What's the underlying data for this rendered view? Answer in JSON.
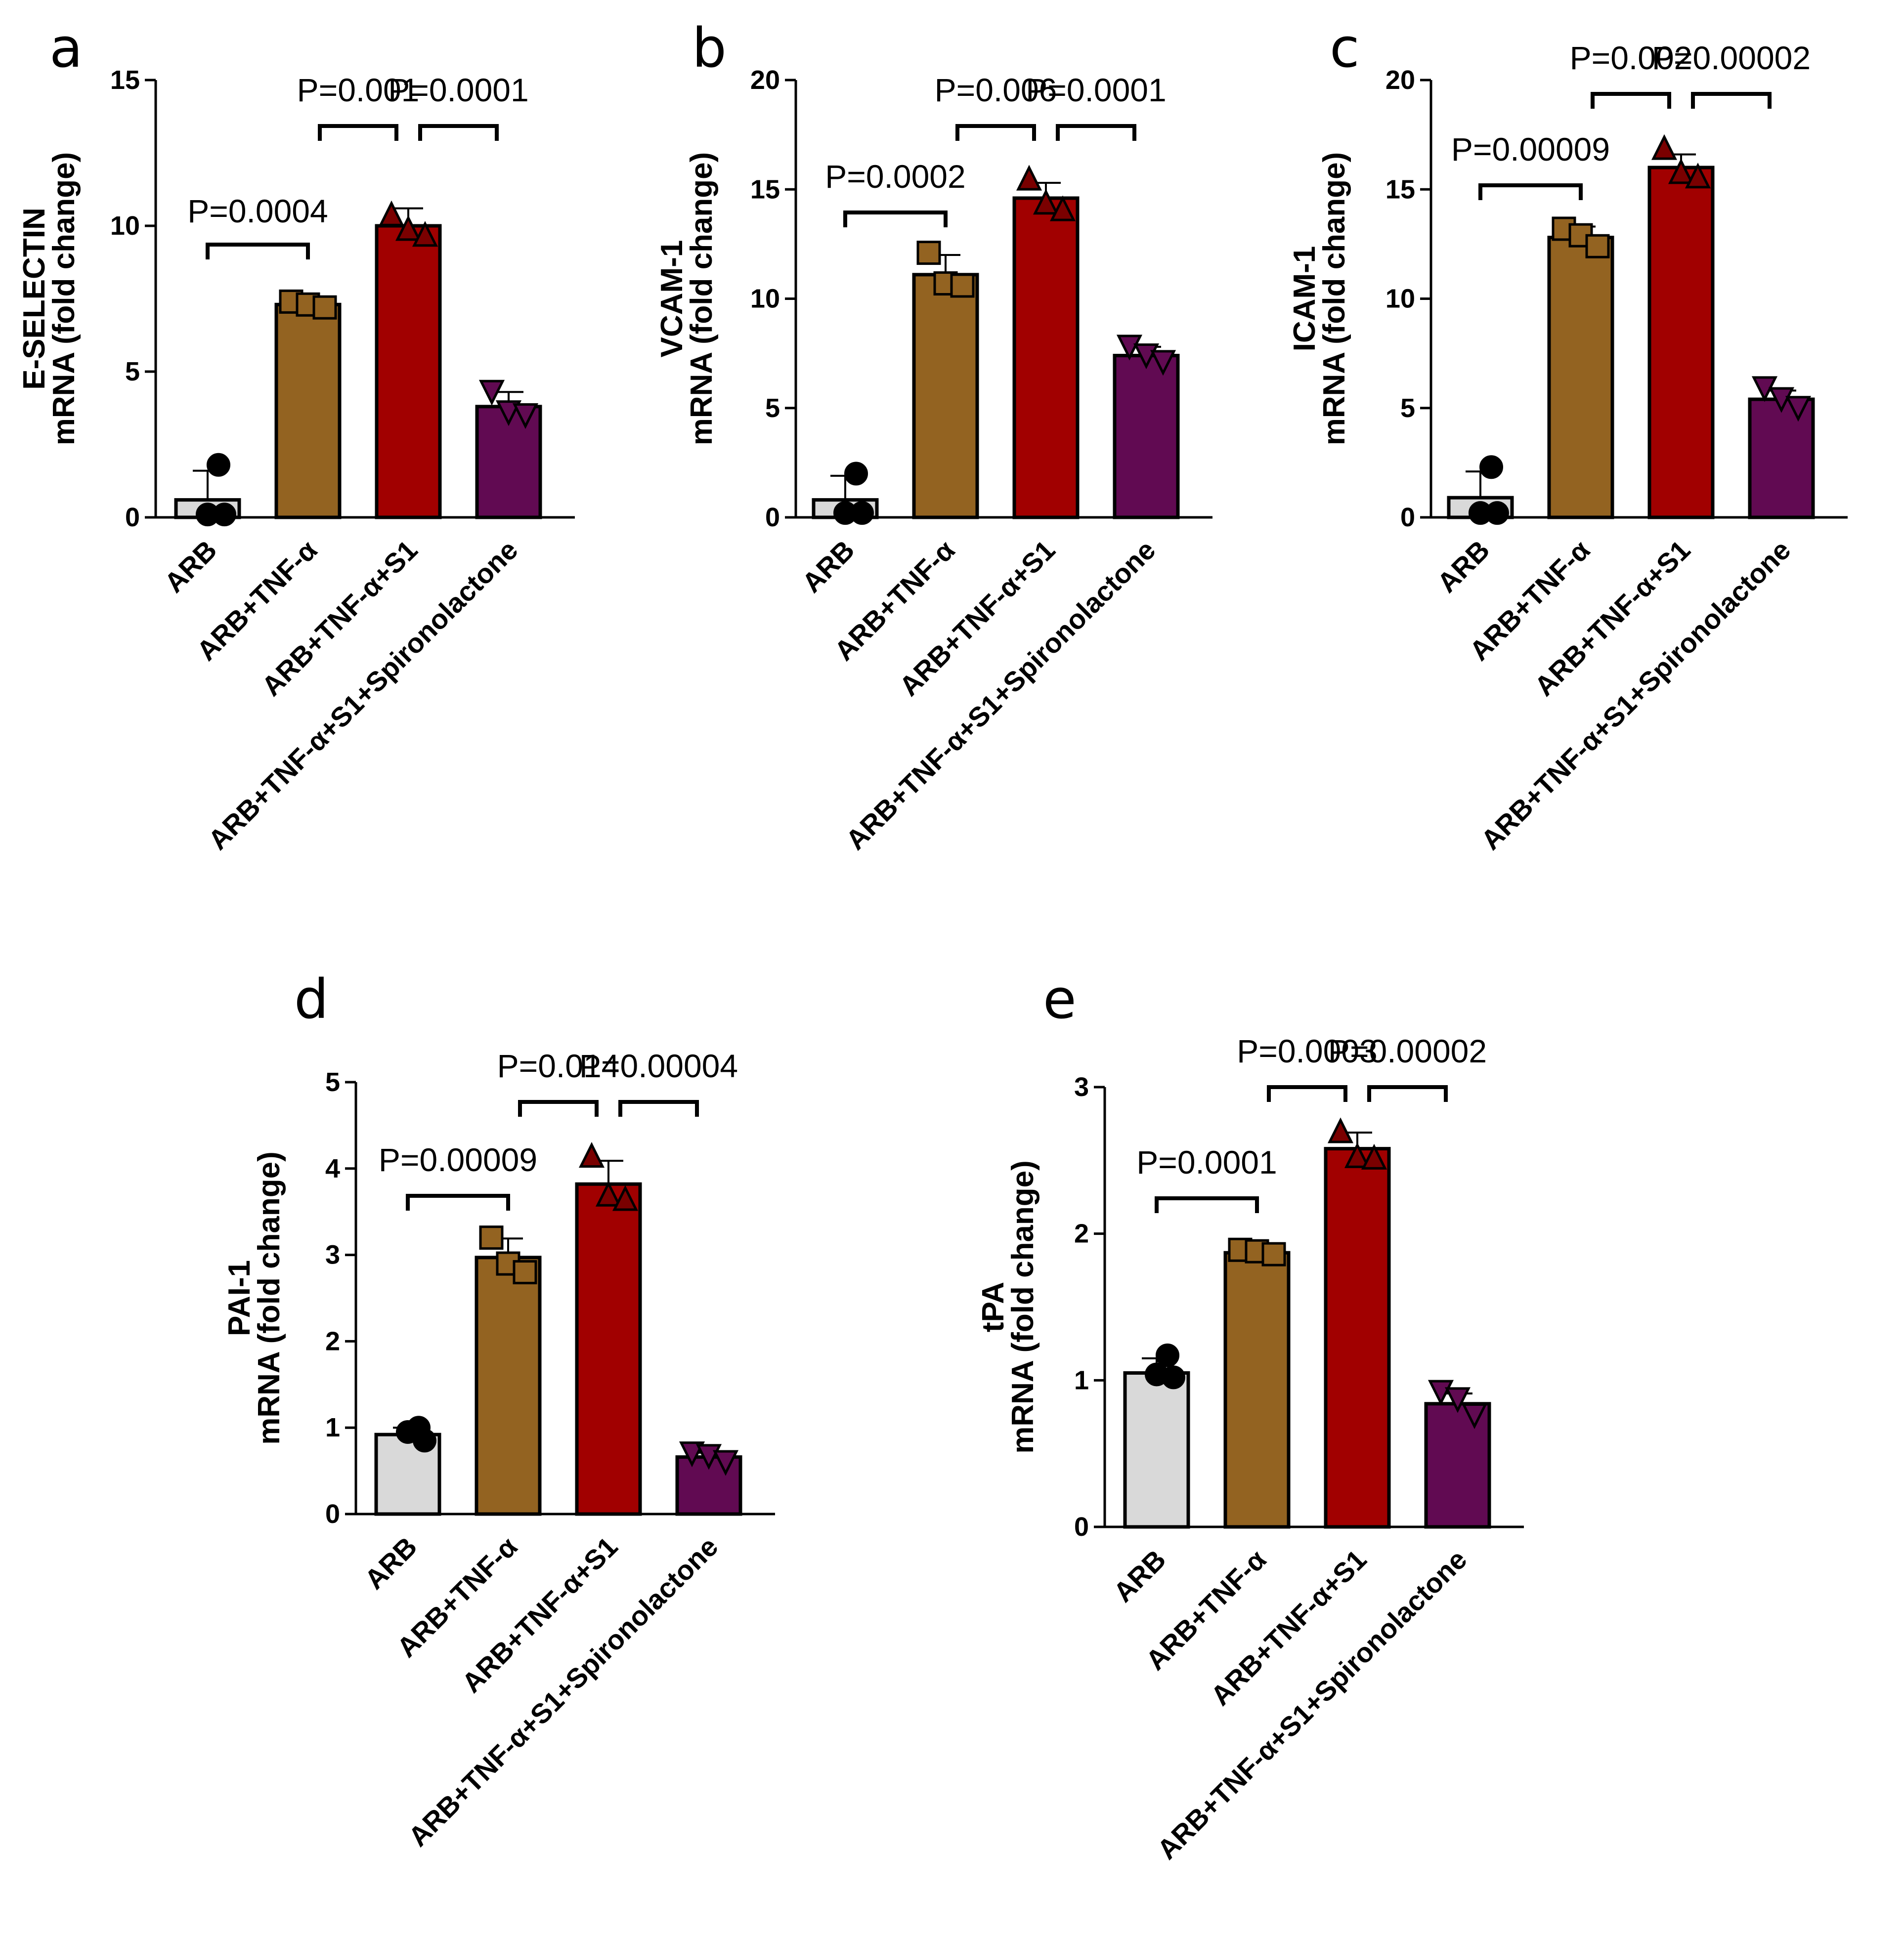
{
  "colors": {
    "ARB": "#d9d9d9",
    "ARB_TNF": "#936321",
    "ARB_TNF_S1": "#a10000",
    "ARB_TNF_S1_Spiro": "#610a52",
    "ARB_dots": "#000000",
    "TNF_dots": "#936321",
    "S1_dots": "#7a0000",
    "Spiro_dots": "#610a52"
  },
  "chart_data": [
    {
      "panel": "a",
      "type": "bar",
      "categories": [
        "ARB",
        "ARB+TNF-α",
        "ARB+TNF-α+S1",
        "ARB+TNF-α+S1+Spironolactone"
      ],
      "values": [
        0.6,
        7.3,
        10.0,
        3.8
      ],
      "sd": [
        1.0,
        0.2,
        0.6,
        0.5
      ],
      "points": [
        [
          1.8,
          0.1,
          0.1
        ],
        [
          7.4,
          7.3,
          7.2
        ],
        [
          10.4,
          9.9,
          9.7
        ],
        [
          4.3,
          3.6,
          3.5
        ]
      ],
      "ylabel": [
        "E-SELECTIN",
        "mRNA (fold change)"
      ],
      "ylim": [
        0,
        15
      ],
      "yticks": [
        0,
        5,
        10,
        15
      ],
      "comparisons": [
        {
          "from": 0,
          "to": 1,
          "label": "P=0.0004"
        },
        {
          "from": 1,
          "to": 2,
          "label": "P=0.001"
        },
        {
          "from": 2,
          "to": 3,
          "label": "P=0.0001"
        }
      ]
    },
    {
      "panel": "b",
      "type": "bar",
      "categories": [
        "ARB",
        "ARB+TNF-α",
        "ARB+TNF-α+S1",
        "ARB+TNF-α+S1+Spironolactone"
      ],
      "values": [
        0.8,
        11.1,
        14.6,
        7.4
      ],
      "sd": [
        1.1,
        0.9,
        0.7,
        0.4
      ],
      "points": [
        [
          2.0,
          0.2,
          0.2
        ],
        [
          12.1,
          10.7,
          10.6
        ],
        [
          15.5,
          14.4,
          14.1
        ],
        [
          7.8,
          7.4,
          7.1
        ]
      ],
      "ylabel": [
        "VCAM-1",
        "mRNA (fold change)"
      ],
      "ylim": [
        0,
        20
      ],
      "yticks": [
        0,
        5,
        10,
        15,
        20
      ],
      "comparisons": [
        {
          "from": 0,
          "to": 1,
          "label": "P=0.0002"
        },
        {
          "from": 1,
          "to": 2,
          "label": "P=0.006"
        },
        {
          "from": 2,
          "to": 3,
          "label": "P=0.0001"
        }
      ]
    },
    {
      "panel": "c",
      "type": "bar",
      "categories": [
        "ARB",
        "ARB+TNF-α",
        "ARB+TNF-α+S1",
        "ARB+TNF-α+S1+Spironolactone"
      ],
      "values": [
        0.9,
        12.8,
        16.0,
        5.4
      ],
      "sd": [
        1.2,
        0.5,
        0.6,
        0.4
      ],
      "points": [
        [
          2.3,
          0.2,
          0.2
        ],
        [
          13.2,
          12.9,
          12.4
        ],
        [
          16.9,
          15.8,
          15.6
        ],
        [
          5.9,
          5.4,
          5.0
        ]
      ],
      "ylabel": [
        "ICAM-1",
        "mRNA (fold change)"
      ],
      "ylim": [
        0,
        20
      ],
      "yticks": [
        0,
        5,
        10,
        15,
        20
      ],
      "comparisons": [
        {
          "from": 0,
          "to": 1,
          "label": "P=0.00009"
        },
        {
          "from": 1,
          "to": 2,
          "label": "P=0.002"
        },
        {
          "from": 2,
          "to": 3,
          "label": "P=0.00002"
        }
      ]
    },
    {
      "panel": "d",
      "type": "bar",
      "categories": [
        "ARB",
        "ARB+TNF-α",
        "ARB+TNF-α+S1",
        "ARB+TNF-α+S1+Spironolactone"
      ],
      "values": [
        0.92,
        2.97,
        3.82,
        0.66
      ],
      "sd": [
        0.08,
        0.22,
        0.27,
        0.05
      ],
      "points": [
        [
          1.0,
          0.95,
          0.85
        ],
        [
          3.2,
          2.9,
          2.8
        ],
        [
          4.15,
          3.7,
          3.65
        ],
        [
          0.7,
          0.67,
          0.6
        ]
      ],
      "ylabel": [
        "PAI-1",
        "mRNA (fold change)"
      ],
      "ylim": [
        0,
        5
      ],
      "yticks": [
        0,
        1,
        2,
        3,
        4,
        5
      ],
      "comparisons": [
        {
          "from": 0,
          "to": 1,
          "label": "P=0.00009"
        },
        {
          "from": 1,
          "to": 2,
          "label": "P=0.014"
        },
        {
          "from": 2,
          "to": 3,
          "label": "P=0.00004"
        }
      ]
    },
    {
      "panel": "e",
      "type": "bar",
      "categories": [
        "ARB",
        "ARB+TNF-α",
        "ARB+TNF-α+S1",
        "ARB+TNF-α+S1+Spironolactone"
      ],
      "values": [
        1.05,
        1.87,
        2.58,
        0.84
      ],
      "sd": [
        0.1,
        0.02,
        0.11,
        0.07
      ],
      "points": [
        [
          1.17,
          1.04,
          1.02
        ],
        [
          1.89,
          1.88,
          1.86
        ],
        [
          2.7,
          2.53,
          2.52
        ],
        [
          0.92,
          0.87,
          0.76
        ]
      ],
      "ylabel": [
        "tPA",
        "mRNA (fold change)"
      ],
      "ylim": [
        0,
        3
      ],
      "yticks": [
        0,
        1,
        2,
        3
      ],
      "comparisons": [
        {
          "from": 0,
          "to": 1,
          "label": "P=0.0001"
        },
        {
          "from": 1,
          "to": 2,
          "label": "P=0.0003"
        },
        {
          "from": 2,
          "to": 3,
          "label": "P=0.00002"
        }
      ]
    }
  ]
}
